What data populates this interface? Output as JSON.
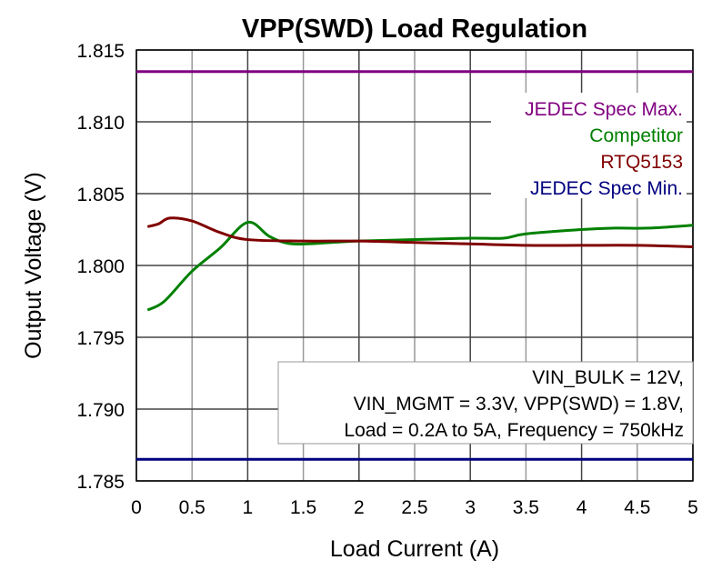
{
  "chart_data": {
    "type": "line",
    "title": "VPP(SWD) Load Regulation",
    "xlabel": "Load Current (A)",
    "ylabel": "Output Voltage (V)",
    "xlim": [
      0,
      5
    ],
    "ylim": [
      1.785,
      1.815
    ],
    "xticks": [
      "0",
      "0.5",
      "1",
      "1.5",
      "2",
      "2.5",
      "3",
      "3.5",
      "4",
      "4.5",
      "5"
    ],
    "yticks": [
      "1.785",
      "1.790",
      "1.795",
      "1.800",
      "1.805",
      "1.810",
      "1.815"
    ],
    "grid": true,
    "legend_position": "top-right",
    "series": [
      {
        "name": "JEDEC Spec Max.",
        "color": "#800080",
        "x": [
          0,
          5
        ],
        "y": [
          1.8135,
          1.8135
        ]
      },
      {
        "name": "Competitor",
        "color": "#008000",
        "x": [
          0.1,
          0.25,
          0.5,
          0.75,
          1.0,
          1.2,
          1.4,
          1.75,
          2,
          2.5,
          3,
          3.3,
          3.5,
          4,
          4.3,
          4.6,
          5
        ],
        "y": [
          1.7969,
          1.7975,
          1.7996,
          1.8012,
          1.803,
          1.802,
          1.8015,
          1.8016,
          1.8017,
          1.8018,
          1.8019,
          1.8019,
          1.8022,
          1.8025,
          1.8026,
          1.8026,
          1.8028
        ]
      },
      {
        "name": "RTQ5153",
        "color": "#800000",
        "x": [
          0.1,
          0.2,
          0.3,
          0.5,
          0.75,
          1.0,
          1.5,
          2,
          2.5,
          3,
          3.5,
          4,
          4.5,
          5
        ],
        "y": [
          1.8027,
          1.8029,
          1.8033,
          1.8031,
          1.8023,
          1.8018,
          1.8017,
          1.8017,
          1.8016,
          1.8015,
          1.8014,
          1.8014,
          1.8014,
          1.8013
        ]
      },
      {
        "name": "JEDEC Spec Min.",
        "color": "#000080",
        "x": [
          0,
          5
        ],
        "y": [
          1.7865,
          1.7865
        ]
      }
    ],
    "annotation": [
      "VIN_BULK = 12V,",
      "VIN_MGMT = 3.3V, VPP(SWD) = 1.8V,",
      "Load = 0.2A to 5A, Frequency = 750kHz"
    ]
  }
}
